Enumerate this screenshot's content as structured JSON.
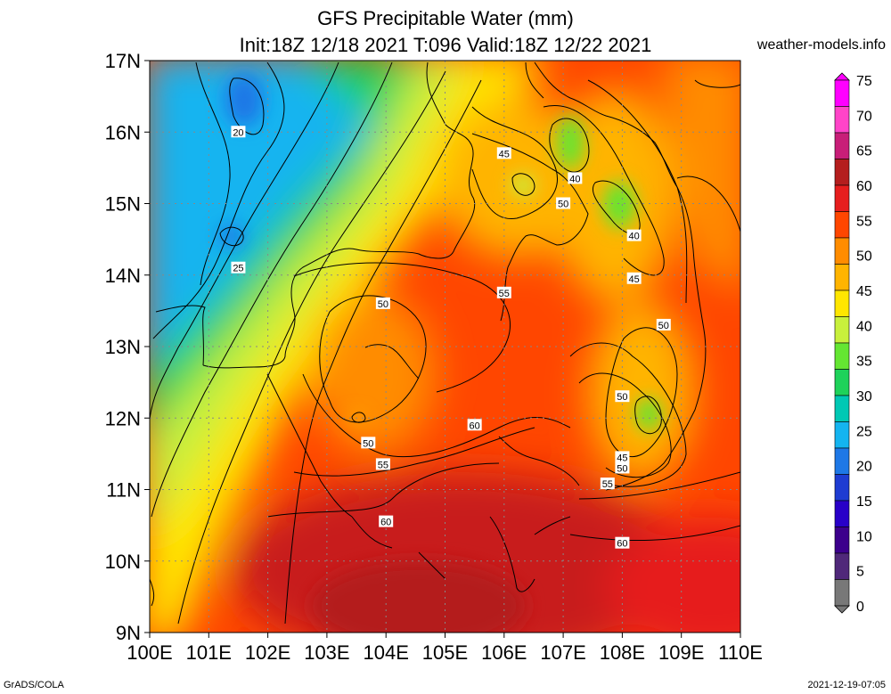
{
  "title_line1": "GFS Precipitable Water (mm)",
  "title_line2": "Init:18Z 12/18 2021 T:096 Valid:18Z 12/22 2021",
  "credit": "weather-models.info",
  "footer_left": "GrADS/COLA",
  "footer_right": "2021-12-19-07:05",
  "map": {
    "lon_range": [
      100,
      110
    ],
    "lat_range": [
      9,
      17
    ],
    "lon_labels": [
      "100E",
      "101E",
      "102E",
      "103E",
      "104E",
      "105E",
      "106E",
      "107E",
      "108E",
      "109E",
      "110E"
    ],
    "lat_labels": [
      "17N",
      "16N",
      "15N",
      "14N",
      "13N",
      "12N",
      "11N",
      "10N",
      "9N"
    ],
    "grid": "dotted"
  },
  "colorbar": {
    "labels": [
      "75",
      "70",
      "65",
      "60",
      "55",
      "50",
      "45",
      "40",
      "35",
      "30",
      "25",
      "20",
      "15",
      "10",
      "5",
      "0"
    ],
    "colors": [
      "#ff00ff",
      "#ff44c8",
      "#c81e78",
      "#b41e1e",
      "#e61e1e",
      "#ff4600",
      "#ff8c00",
      "#ffb400",
      "#ffe600",
      "#c8f03c",
      "#64e632",
      "#1ed25a",
      "#00c8b4",
      "#14b4f0",
      "#1e78e6",
      "#1e3cd2",
      "#2800c8",
      "#3c008c",
      "#50287a",
      "#787878"
    ]
  },
  "contour_labels": [
    {
      "text": "20",
      "lon": 101.5,
      "lat": 16.0
    },
    {
      "text": "25",
      "lon": 101.5,
      "lat": 14.1
    },
    {
      "text": "45",
      "lon": 106.0,
      "lat": 15.7
    },
    {
      "text": "40",
      "lon": 107.2,
      "lat": 15.35
    },
    {
      "text": "50",
      "lon": 107.0,
      "lat": 15.0
    },
    {
      "text": "40",
      "lon": 108.2,
      "lat": 14.55
    },
    {
      "text": "45",
      "lon": 108.2,
      "lat": 13.95
    },
    {
      "text": "55",
      "lon": 106.0,
      "lat": 13.75
    },
    {
      "text": "50",
      "lon": 103.95,
      "lat": 13.6
    },
    {
      "text": "50",
      "lon": 108.7,
      "lat": 13.3
    },
    {
      "text": "50",
      "lon": 108.0,
      "lat": 12.3
    },
    {
      "text": "60",
      "lon": 105.5,
      "lat": 11.9
    },
    {
      "text": "50",
      "lon": 103.7,
      "lat": 11.65
    },
    {
      "text": "55",
      "lon": 103.95,
      "lat": 11.35
    },
    {
      "text": "45",
      "lon": 108.0,
      "lat": 11.45
    },
    {
      "text": "50",
      "lon": 108.0,
      "lat": 11.3
    },
    {
      "text": "55",
      "lon": 107.75,
      "lat": 11.08
    },
    {
      "text": "60",
      "lon": 104.0,
      "lat": 10.55
    },
    {
      "text": "60",
      "lon": 108.0,
      "lat": 10.25
    }
  ]
}
